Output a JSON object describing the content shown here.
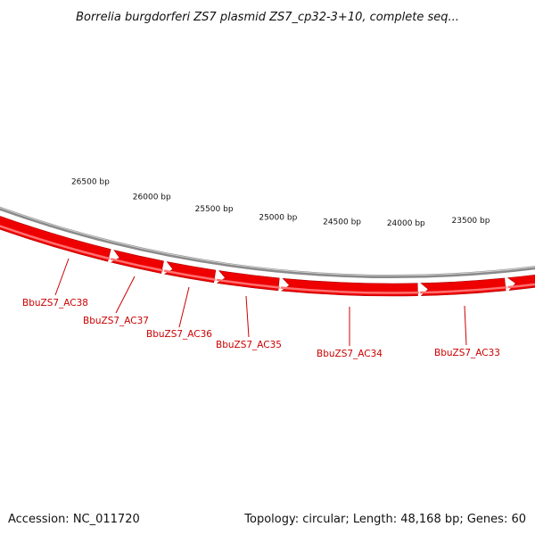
{
  "title": "Borrelia burgdorferi ZS7 plasmid ZS7_cp32-3+10, complete seq...",
  "footer": {
    "accession": "Accession: NC_011720",
    "summary": "Topology: circular; Length: 48,168 bp; Genes: 60"
  },
  "colors": {
    "backbone": "#8a8a8a",
    "gene_fill": "#ee0000",
    "gene_highlight": "#ff7070",
    "gene_label": "#cc0000",
    "tick": "#2e8b2e"
  },
  "scale": {
    "labels": [
      "26500 bp",
      "26000 bp",
      "25500 bp",
      "25000 bp",
      "24500 bp",
      "24000 bp",
      "23500 bp"
    ]
  },
  "genes": [
    {
      "name": "BbuZS7_AC38"
    },
    {
      "name": "BbuZS7_AC37"
    },
    {
      "name": "BbuZS7_AC36"
    },
    {
      "name": "BbuZS7_AC35"
    },
    {
      "name": "BbuZS7_AC34"
    },
    {
      "name": "BbuZS7_AC33"
    }
  ]
}
